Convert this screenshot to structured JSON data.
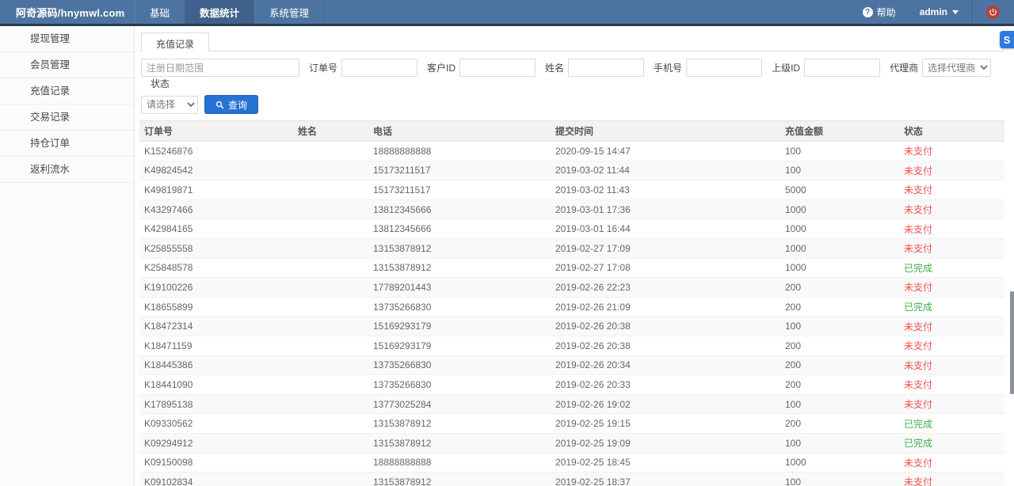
{
  "topbar": {
    "brand": "阿奇源码/hnymwl.com",
    "menu": [
      {
        "label": "基础",
        "active": false
      },
      {
        "label": "数据统计",
        "active": true
      },
      {
        "label": "系统管理",
        "active": false
      }
    ],
    "help_label": "帮助",
    "user_label": "admin"
  },
  "sidebar": {
    "items": [
      {
        "label": "提现管理"
      },
      {
        "label": "会员管理"
      },
      {
        "label": "充值记录"
      },
      {
        "label": "交易记录"
      },
      {
        "label": "持仓订单"
      },
      {
        "label": "返利流水"
      }
    ]
  },
  "tabs": {
    "active_label": "充值记录"
  },
  "filters": {
    "date_placeholder": "注册日期范围",
    "fields": [
      {
        "label": "订单号",
        "value": ""
      },
      {
        "label": "客户ID",
        "value": ""
      },
      {
        "label": "姓名",
        "value": ""
      },
      {
        "label": "手机号",
        "value": ""
      },
      {
        "label": "上级ID",
        "value": ""
      }
    ],
    "agent_label": "代理商",
    "agent_selected": "选择代理商",
    "status_label": "状态",
    "status_selected": "请选择",
    "search_label": "查询"
  },
  "table": {
    "headers": [
      "订单号",
      "姓名",
      "电话",
      "提交时间",
      "充值金额",
      "状态"
    ],
    "status_colors": {
      "unpaid": "#f25050",
      "done": "#3fae4e"
    },
    "status_done_text": "已完成",
    "rows": [
      [
        "K15246876",
        "",
        "18888888888",
        "2020-09-15 14:47",
        "100",
        "未支付"
      ],
      [
        "K49824542",
        "",
        "15173211517",
        "2019-03-02 11:44",
        "100",
        "未支付"
      ],
      [
        "K49819871",
        "",
        "15173211517",
        "2019-03-02 11:43",
        "5000",
        "未支付"
      ],
      [
        "K43297466",
        "",
        "13812345666",
        "2019-03-01 17:36",
        "1000",
        "未支付"
      ],
      [
        "K42984165",
        "",
        "13812345666",
        "2019-03-01 16:44",
        "1000",
        "未支付"
      ],
      [
        "K25855558",
        "",
        "13153878912",
        "2019-02-27 17:09",
        "1000",
        "未支付"
      ],
      [
        "K25848578",
        "",
        "13153878912",
        "2019-02-27 17:08",
        "1000",
        "已完成"
      ],
      [
        "K19100226",
        "",
        "17789201443",
        "2019-02-26 22:23",
        "200",
        "未支付"
      ],
      [
        "K18655899",
        "",
        "13735266830",
        "2019-02-26 21:09",
        "200",
        "已完成"
      ],
      [
        "K18472314",
        "",
        "15169293179",
        "2019-02-26 20:38",
        "100",
        "未支付"
      ],
      [
        "K18471159",
        "",
        "15169293179",
        "2019-02-26 20:38",
        "200",
        "未支付"
      ],
      [
        "K18445386",
        "",
        "13735266830",
        "2019-02-26 20:34",
        "200",
        "未支付"
      ],
      [
        "K18441090",
        "",
        "13735266830",
        "2019-02-26 20:33",
        "200",
        "未支付"
      ],
      [
        "K17895138",
        "",
        "13773025284",
        "2019-02-26 19:02",
        "100",
        "未支付"
      ],
      [
        "K09330562",
        "",
        "13153878912",
        "2019-02-25 19:15",
        "200",
        "已完成"
      ],
      [
        "K09294912",
        "",
        "13153878912",
        "2019-02-25 19:09",
        "100",
        "已完成"
      ],
      [
        "K09150098",
        "",
        "18888888888",
        "2019-02-25 18:45",
        "1000",
        "未支付"
      ],
      [
        "K09102834",
        "",
        "13153878912",
        "2019-02-25 18:37",
        "100",
        "未支付"
      ]
    ]
  },
  "floating": {
    "badge_glyph": "S"
  }
}
